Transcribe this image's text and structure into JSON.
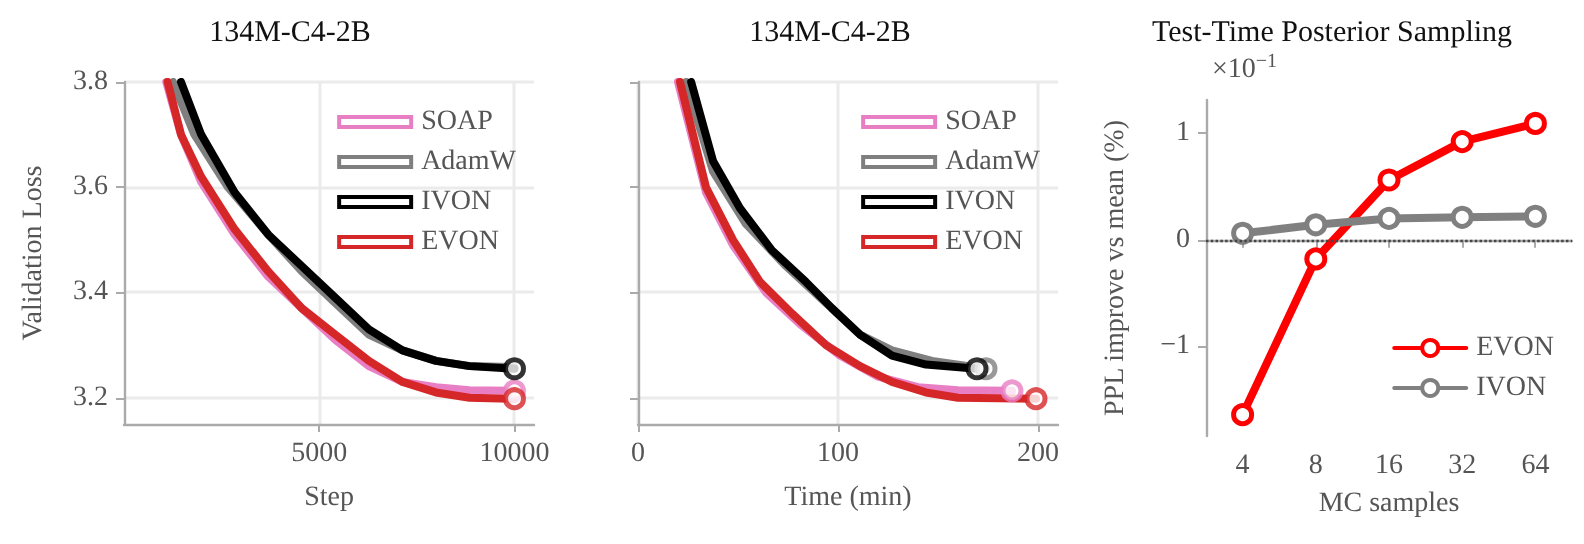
{
  "chart_data": [
    {
      "type": "line",
      "title": "134M-C4-2B",
      "xlabel": "Step",
      "ylabel": "Validation Loss",
      "xlim": [
        0,
        10500
      ],
      "xticks": [
        5000,
        10000
      ],
      "ylim": [
        3.15,
        3.8
      ],
      "yticks": [
        3.2,
        3.4,
        3.6,
        3.8
      ],
      "grid": true,
      "legend": "top right",
      "series": [
        {
          "name": "SOAP",
          "color": "#e87fc4",
          "x": [
            1082,
            1460,
            1976,
            2835,
            3694,
            4553,
            5412,
            6272,
            7131,
            7990,
            8850,
            10000
          ],
          "values": [
            3.8,
            3.7,
            3.61,
            3.51,
            3.43,
            3.37,
            3.31,
            3.26,
            3.23,
            3.22,
            3.214,
            3.213
          ]
        },
        {
          "name": "AdamW",
          "color": "#7f7f7f",
          "x": [
            1254,
            1804,
            2663,
            3694,
            4553,
            5412,
            6272,
            7131,
            7990,
            8850,
            10000
          ],
          "values": [
            3.8,
            3.7,
            3.6,
            3.51,
            3.44,
            3.38,
            3.32,
            3.29,
            3.27,
            3.26,
            3.258
          ]
        },
        {
          "name": "IVON",
          "color": "#000000",
          "x": [
            1460,
            1976,
            2835,
            3694,
            4553,
            5412,
            6272,
            7131,
            7990,
            8850,
            10000
          ],
          "values": [
            3.8,
            3.7,
            3.59,
            3.51,
            3.45,
            3.39,
            3.33,
            3.29,
            3.27,
            3.26,
            3.255
          ]
        },
        {
          "name": "EVON",
          "color": "#d62728",
          "x": [
            1117,
            1460,
            1976,
            2835,
            3694,
            4553,
            5412,
            6272,
            7131,
            7990,
            8850,
            10000
          ],
          "values": [
            3.8,
            3.7,
            3.62,
            3.52,
            3.44,
            3.37,
            3.32,
            3.27,
            3.23,
            3.21,
            3.2,
            3.198
          ]
        },
        {
          "type": "scatter",
          "color": "#e87fc4",
          "marker": "circle",
          "x": [
            10000
          ],
          "values": [
            3.213
          ]
        },
        {
          "type": "scatter",
          "color": "#000000",
          "marker": "circle",
          "x": [
            10000
          ],
          "values": [
            3.255
          ]
        },
        {
          "type": "scatter",
          "color": "#d62728",
          "marker": "circle",
          "x": [
            10000
          ],
          "values": [
            3.198
          ]
        }
      ]
    },
    {
      "type": "line",
      "title": "134M-C4-2B",
      "xlabel": "Time (min)",
      "xlim": [
        0,
        210
      ],
      "xticks": [
        0,
        100,
        200
      ],
      "ylim": [
        3.15,
        3.8
      ],
      "yticks": [
        3.2,
        3.4,
        3.6,
        3.8
      ],
      "tick_labels": "x",
      "grid": true,
      "legend": "top right",
      "series": [
        {
          "name": "SOAP",
          "color": "#e87fc4",
          "x": [
            20,
            34,
            47.5,
            64,
            81,
            101,
            120,
            140,
            160,
            187
          ],
          "values": [
            3.8,
            3.59,
            3.49,
            3.4,
            3.34,
            3.28,
            3.24,
            3.22,
            3.214,
            3.213
          ]
        },
        {
          "name": "AdamW",
          "color": "#7f7f7f",
          "x": [
            24,
            37.5,
            54,
            74,
            94,
            111,
            127,
            147,
            174
          ],
          "values": [
            3.8,
            3.63,
            3.53,
            3.45,
            3.38,
            3.32,
            3.29,
            3.27,
            3.255
          ]
        },
        {
          "name": "IVON",
          "color": "#000000",
          "x": [
            26.6,
            37.5,
            51,
            67,
            84,
            97,
            111,
            127,
            144,
            169.5
          ],
          "values": [
            3.8,
            3.65,
            3.56,
            3.48,
            3.42,
            3.37,
            3.32,
            3.28,
            3.263,
            3.255
          ]
        },
        {
          "name": "EVON",
          "color": "#d62728",
          "x": [
            21,
            34,
            47.5,
            61,
            77,
            94,
            111,
            127,
            144,
            160,
            199
          ],
          "values": [
            3.8,
            3.6,
            3.5,
            3.42,
            3.36,
            3.3,
            3.26,
            3.23,
            3.21,
            3.2,
            3.198
          ]
        },
        {
          "type": "scatter",
          "color": "#7f7f7f",
          "marker": "circle",
          "x": [
            174
          ],
          "values": [
            3.255
          ]
        },
        {
          "type": "scatter",
          "color": "#e87fc4",
          "marker": "circle",
          "x": [
            187
          ],
          "values": [
            3.213
          ]
        },
        {
          "type": "scatter",
          "color": "#000000",
          "marker": "circle",
          "x": [
            169.5
          ],
          "values": [
            3.255
          ]
        },
        {
          "type": "scatter",
          "color": "#d62728",
          "marker": "circle",
          "x": [
            199
          ],
          "values": [
            3.198
          ]
        }
      ]
    },
    {
      "type": "line",
      "title": "Test-Time Posterior Sampling",
      "xlabel": "MC samples",
      "ylabel": "PPL improve vs mean (%)",
      "categories": [
        "4",
        "8",
        "16",
        "32",
        "64"
      ],
      "ylim": [
        -1.84,
        1.31
      ],
      "yticks": [
        -1,
        0,
        1
      ],
      "annotations": [
        "×10$^{−1}$"
      ],
      "marker": "circle",
      "legend": "bottom right",
      "ref_lines": [
        {
          "axis": "y",
          "value": 0,
          "color": "#444444",
          "line_style": "dotted"
        }
      ],
      "series": [
        {
          "name": "EVON",
          "color": "#ff0000",
          "values": [
            -1.64,
            -0.18,
            0.56,
            0.92,
            1.09
          ]
        },
        {
          "name": "IVON",
          "color": "#808080",
          "values": [
            0.06,
            0.14,
            0.2,
            0.21,
            0.22
          ]
        }
      ]
    }
  ]
}
